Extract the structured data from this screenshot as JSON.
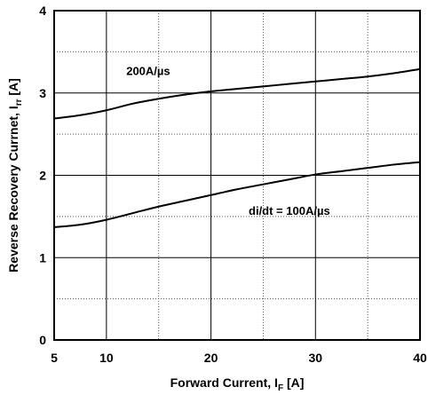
{
  "chart_data": {
    "type": "line",
    "title": "",
    "xlabel": {
      "main": "Forward Current, I",
      "sub": "F",
      "unit": " [A]"
    },
    "ylabel": {
      "main": "Reverse Recovery Currnet, I",
      "sub": "rr",
      "unit": " [A]"
    },
    "xlim": [
      5,
      40
    ],
    "ylim": [
      0,
      4
    ],
    "xticks": [
      5,
      10,
      20,
      30,
      40
    ],
    "xtick_labels": [
      "5",
      "10",
      "20",
      "30",
      "40"
    ],
    "yticks": [
      0,
      1,
      2,
      3,
      4
    ],
    "ytick_labels": [
      "0",
      "1",
      "2",
      "3",
      "4"
    ],
    "grid": {
      "major_x": [
        10,
        20,
        30
      ],
      "major_y": [
        1,
        2,
        3
      ],
      "minor_x": [
        15,
        25,
        35
      ],
      "minor_y": [
        0.5,
        1.5,
        2.5,
        3.5
      ]
    },
    "series": [
      {
        "x": [
          5,
          7.5,
          10,
          12.5,
          15,
          17.5,
          20,
          22.5,
          25,
          27.5,
          30,
          32.5,
          35,
          37.5,
          40
        ],
        "y": [
          2.69,
          2.73,
          2.79,
          2.87,
          2.93,
          2.98,
          3.02,
          3.05,
          3.08,
          3.11,
          3.14,
          3.17,
          3.2,
          3.24,
          3.29
        ]
      },
      {
        "x": [
          5,
          7.5,
          10,
          12.5,
          15,
          17.5,
          20,
          22.5,
          25,
          27.5,
          30,
          32.5,
          35,
          37.5,
          40
        ],
        "y": [
          1.37,
          1.4,
          1.46,
          1.54,
          1.62,
          1.69,
          1.76,
          1.83,
          1.89,
          1.95,
          2.01,
          2.05,
          2.09,
          2.13,
          2.16
        ]
      }
    ],
    "annotations": [
      {
        "text": "200A/µs",
        "x": 14,
        "y": 3.22
      },
      {
        "text": "di/dt = 100A/µs",
        "x": 27.5,
        "y": 1.52
      }
    ]
  }
}
